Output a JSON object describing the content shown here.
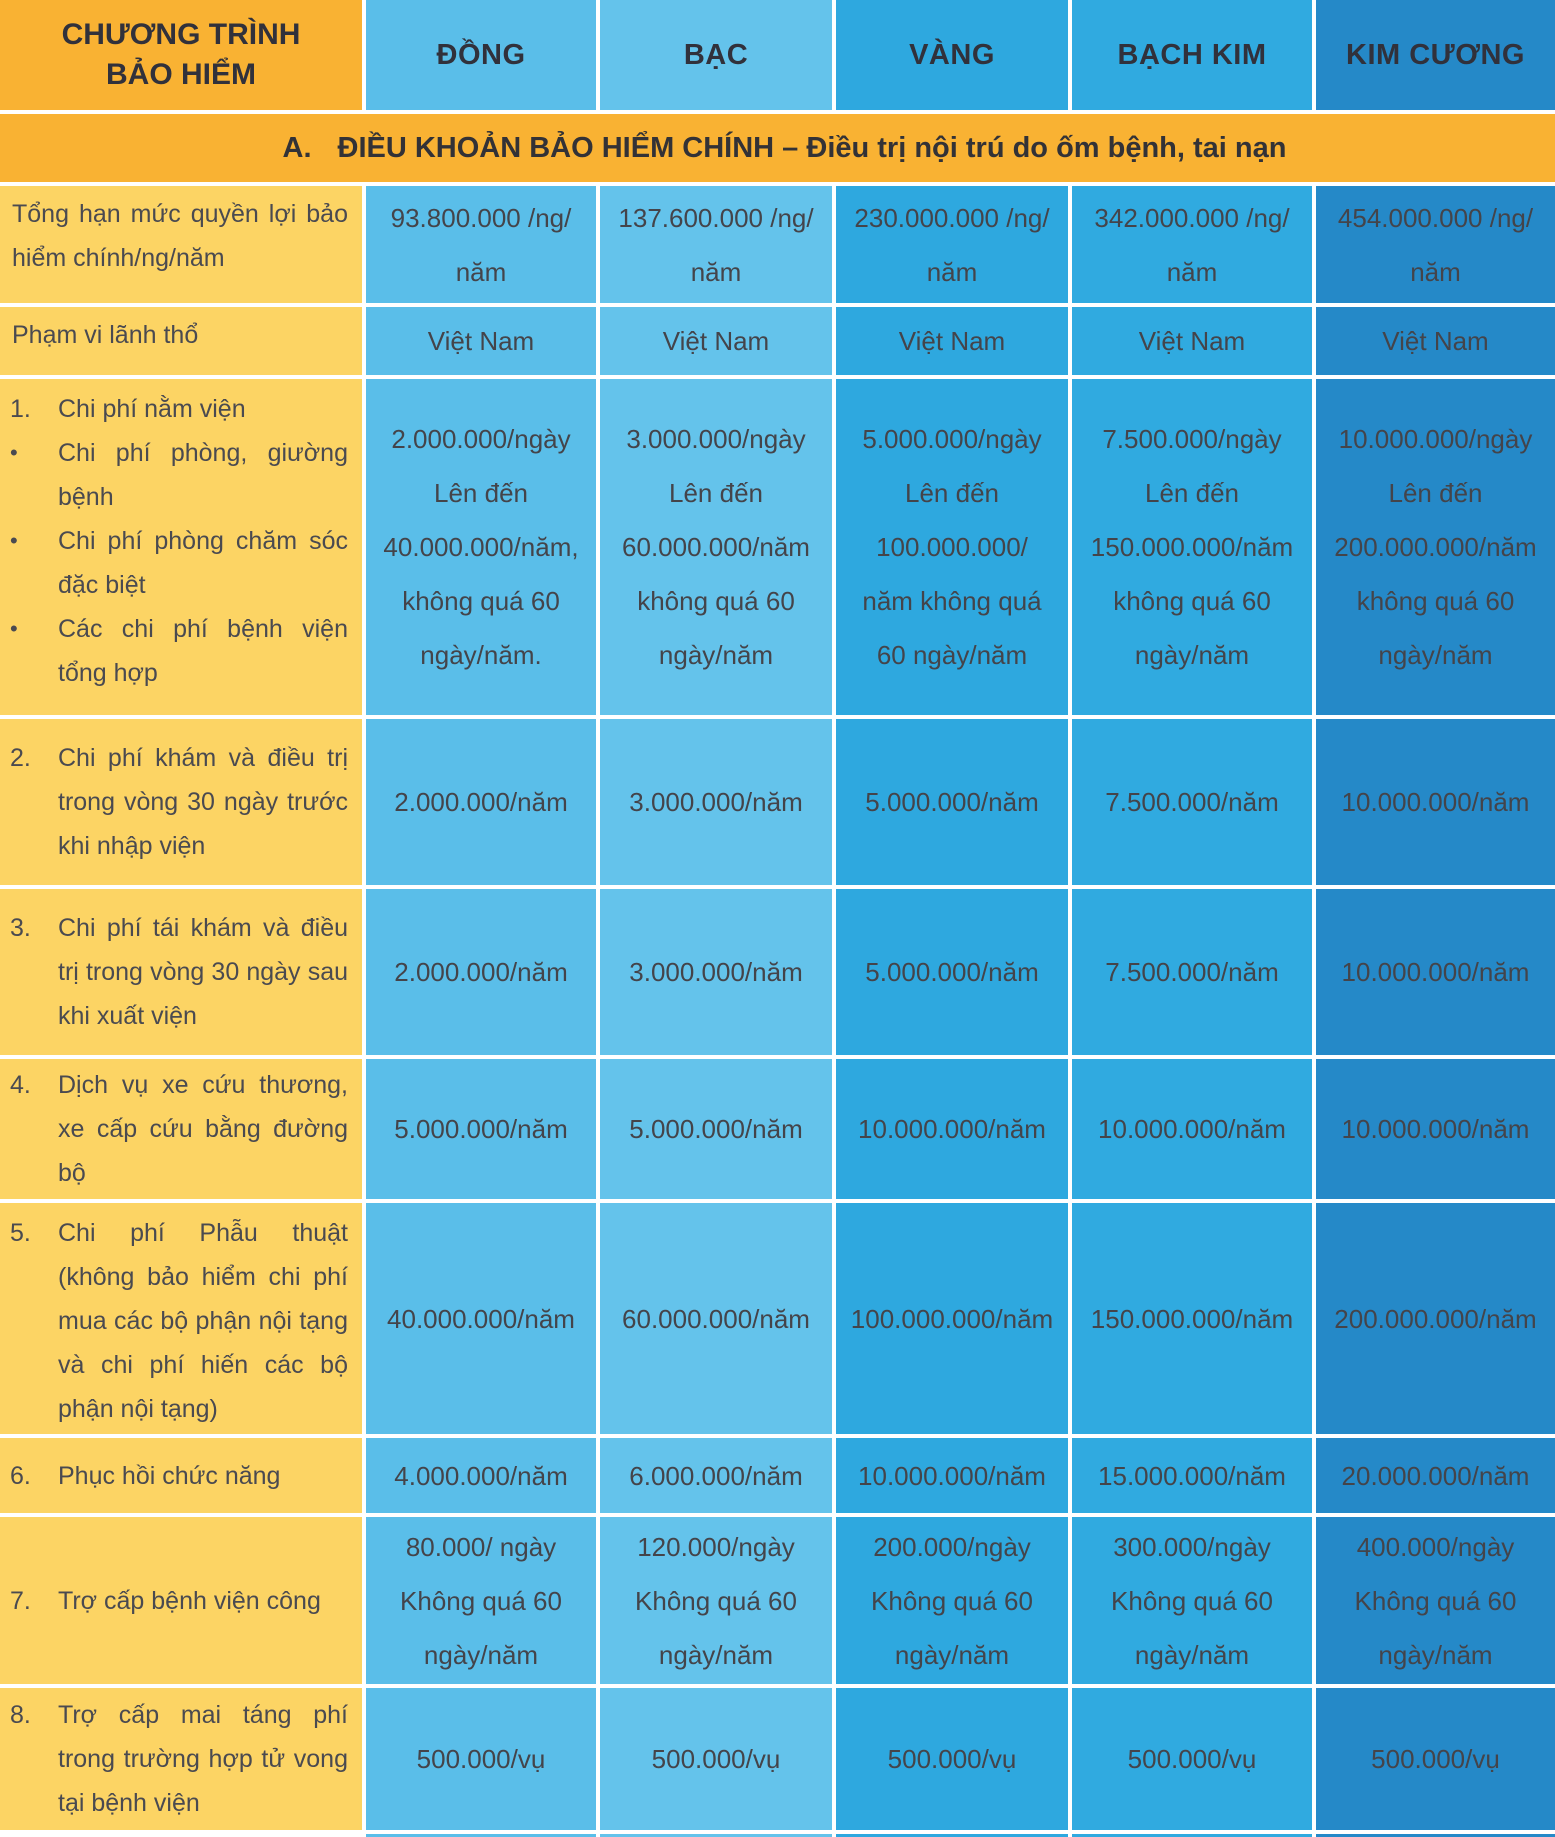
{
  "header": {
    "program_label": "CHƯƠNG TRÌNH\nBẢO HIỂM",
    "columns": [
      "ĐỒNG",
      "BẠC",
      "VÀNG",
      "BẠCH KIM",
      "KIM CƯƠNG"
    ]
  },
  "section": {
    "marker": "A.",
    "title": "ĐIỀU KHOẢN BẢO HIỂM CHÍNH – Điều trị nội trú do ốm bệnh, tai nạn"
  },
  "rows": [
    {
      "label": "Tổng hạn mức quyền lợi bảo hiểm chính/ng/năm",
      "values": [
        "93.800.000 /ng/\nnăm",
        "137.600.000 /ng/\nnăm",
        "230.000.000 /ng/\nnăm",
        "342.000.000 /ng/\nnăm",
        "454.000.000 /ng/\nnăm"
      ]
    },
    {
      "label": "Phạm vi lãnh thổ",
      "values": [
        "Việt Nam",
        "Việt Nam",
        "Việt Nam",
        "Việt Nam",
        "Việt Nam"
      ]
    },
    {
      "items": [
        {
          "marker": "1.",
          "text": "Chi phí nằm viện"
        },
        {
          "marker": "•",
          "text": "Chi phí phòng, giường bệnh"
        },
        {
          "marker": "•",
          "text": "Chi phí phòng chăm sóc đặc biệt"
        },
        {
          "marker": "•",
          "text": "Các chi phí bệnh viện tổng hợp"
        }
      ],
      "values": [
        "2.000.000/ngày\nLên đến\n40.000.000/năm,\nkhông quá 60\nngày/năm.",
        "3.000.000/ngày\nLên đến\n60.000.000/năm\nkhông quá 60\nngày/năm",
        "5.000.000/ngày\nLên đến\n100.000.000/\nnăm không quá\n60 ngày/năm",
        "7.500.000/ngày\nLên đến\n150.000.000/năm\nkhông quá 60\nngày/năm",
        "10.000.000/ngày\nLên đến\n200.000.000/năm\nkhông quá 60\nngày/năm"
      ]
    },
    {
      "items": [
        {
          "marker": "2.",
          "text": "Chi phí khám và điều trị trong vòng 30 ngày trước khi nhập viện"
        }
      ],
      "values": [
        "2.000.000/năm",
        "3.000.000/năm",
        "5.000.000/năm",
        "7.500.000/năm",
        "10.000.000/năm"
      ]
    },
    {
      "items": [
        {
          "marker": "3.",
          "text": "Chi phí tái khám và điều trị trong vòng 30 ngày sau khi xuất viện"
        }
      ],
      "values": [
        "2.000.000/năm",
        "3.000.000/năm",
        "5.000.000/năm",
        "7.500.000/năm",
        "10.000.000/năm"
      ]
    },
    {
      "items": [
        {
          "marker": "4.",
          "text": "Dịch vụ xe cứu thương, xe cấp cứu bằng đường bộ"
        }
      ],
      "values": [
        "5.000.000/năm",
        "5.000.000/năm",
        "10.000.000/năm",
        "10.000.000/năm",
        "10.000.000/năm"
      ]
    },
    {
      "items": [
        {
          "marker": "5.",
          "text": "Chi phí Phẫu thuật (không bảo hiểm chi phí mua các bộ phận nội tạng và chi phí hiến các bộ phận nội tạng)"
        }
      ],
      "values": [
        "40.000.000/năm",
        "60.000.000/năm",
        "100.000.000/năm",
        "150.000.000/năm",
        "200.000.000/năm"
      ]
    },
    {
      "items": [
        {
          "marker": "6.",
          "text": "Phục hồi chức năng"
        }
      ],
      "values": [
        "4.000.000/năm",
        "6.000.000/năm",
        "10.000.000/năm",
        "15.000.000/năm",
        "20.000.000/năm"
      ]
    },
    {
      "items": [
        {
          "marker": "7.",
          "text": "Trợ cấp bệnh viện công"
        }
      ],
      "values": [
        "80.000/ ngày\nKhông quá 60\nngày/năm",
        "120.000/ngày\nKhông quá 60\nngày/năm",
        "200.000/ngày\nKhông quá 60\nngày/năm",
        "300.000/ngày\nKhông quá 60\nngày/năm",
        "400.000/ngày\nKhông quá 60\nngày/năm"
      ]
    },
    {
      "items": [
        {
          "marker": "8.",
          "text": "Trợ cấp mai táng phí trong trường hợp tử vong tại bệnh viện"
        }
      ],
      "values": [
        "500.000/vụ",
        "500.000/vụ",
        "500.000/vụ",
        "500.000/vụ",
        "500.000/vụ"
      ]
    }
  ],
  "colors": {
    "header_orange": "#F9B233",
    "label_yellow": "#FCD464",
    "col_dong": "#5ABEE9",
    "col_bac": "#64C3EB",
    "col_vang": "#2EA8DF",
    "col_bach_kim": "#30AAE0",
    "col_kim_cuong": "#2589C8",
    "divider": "#FFFFFF",
    "header_text": "#31313B",
    "body_text": "#44444A"
  }
}
